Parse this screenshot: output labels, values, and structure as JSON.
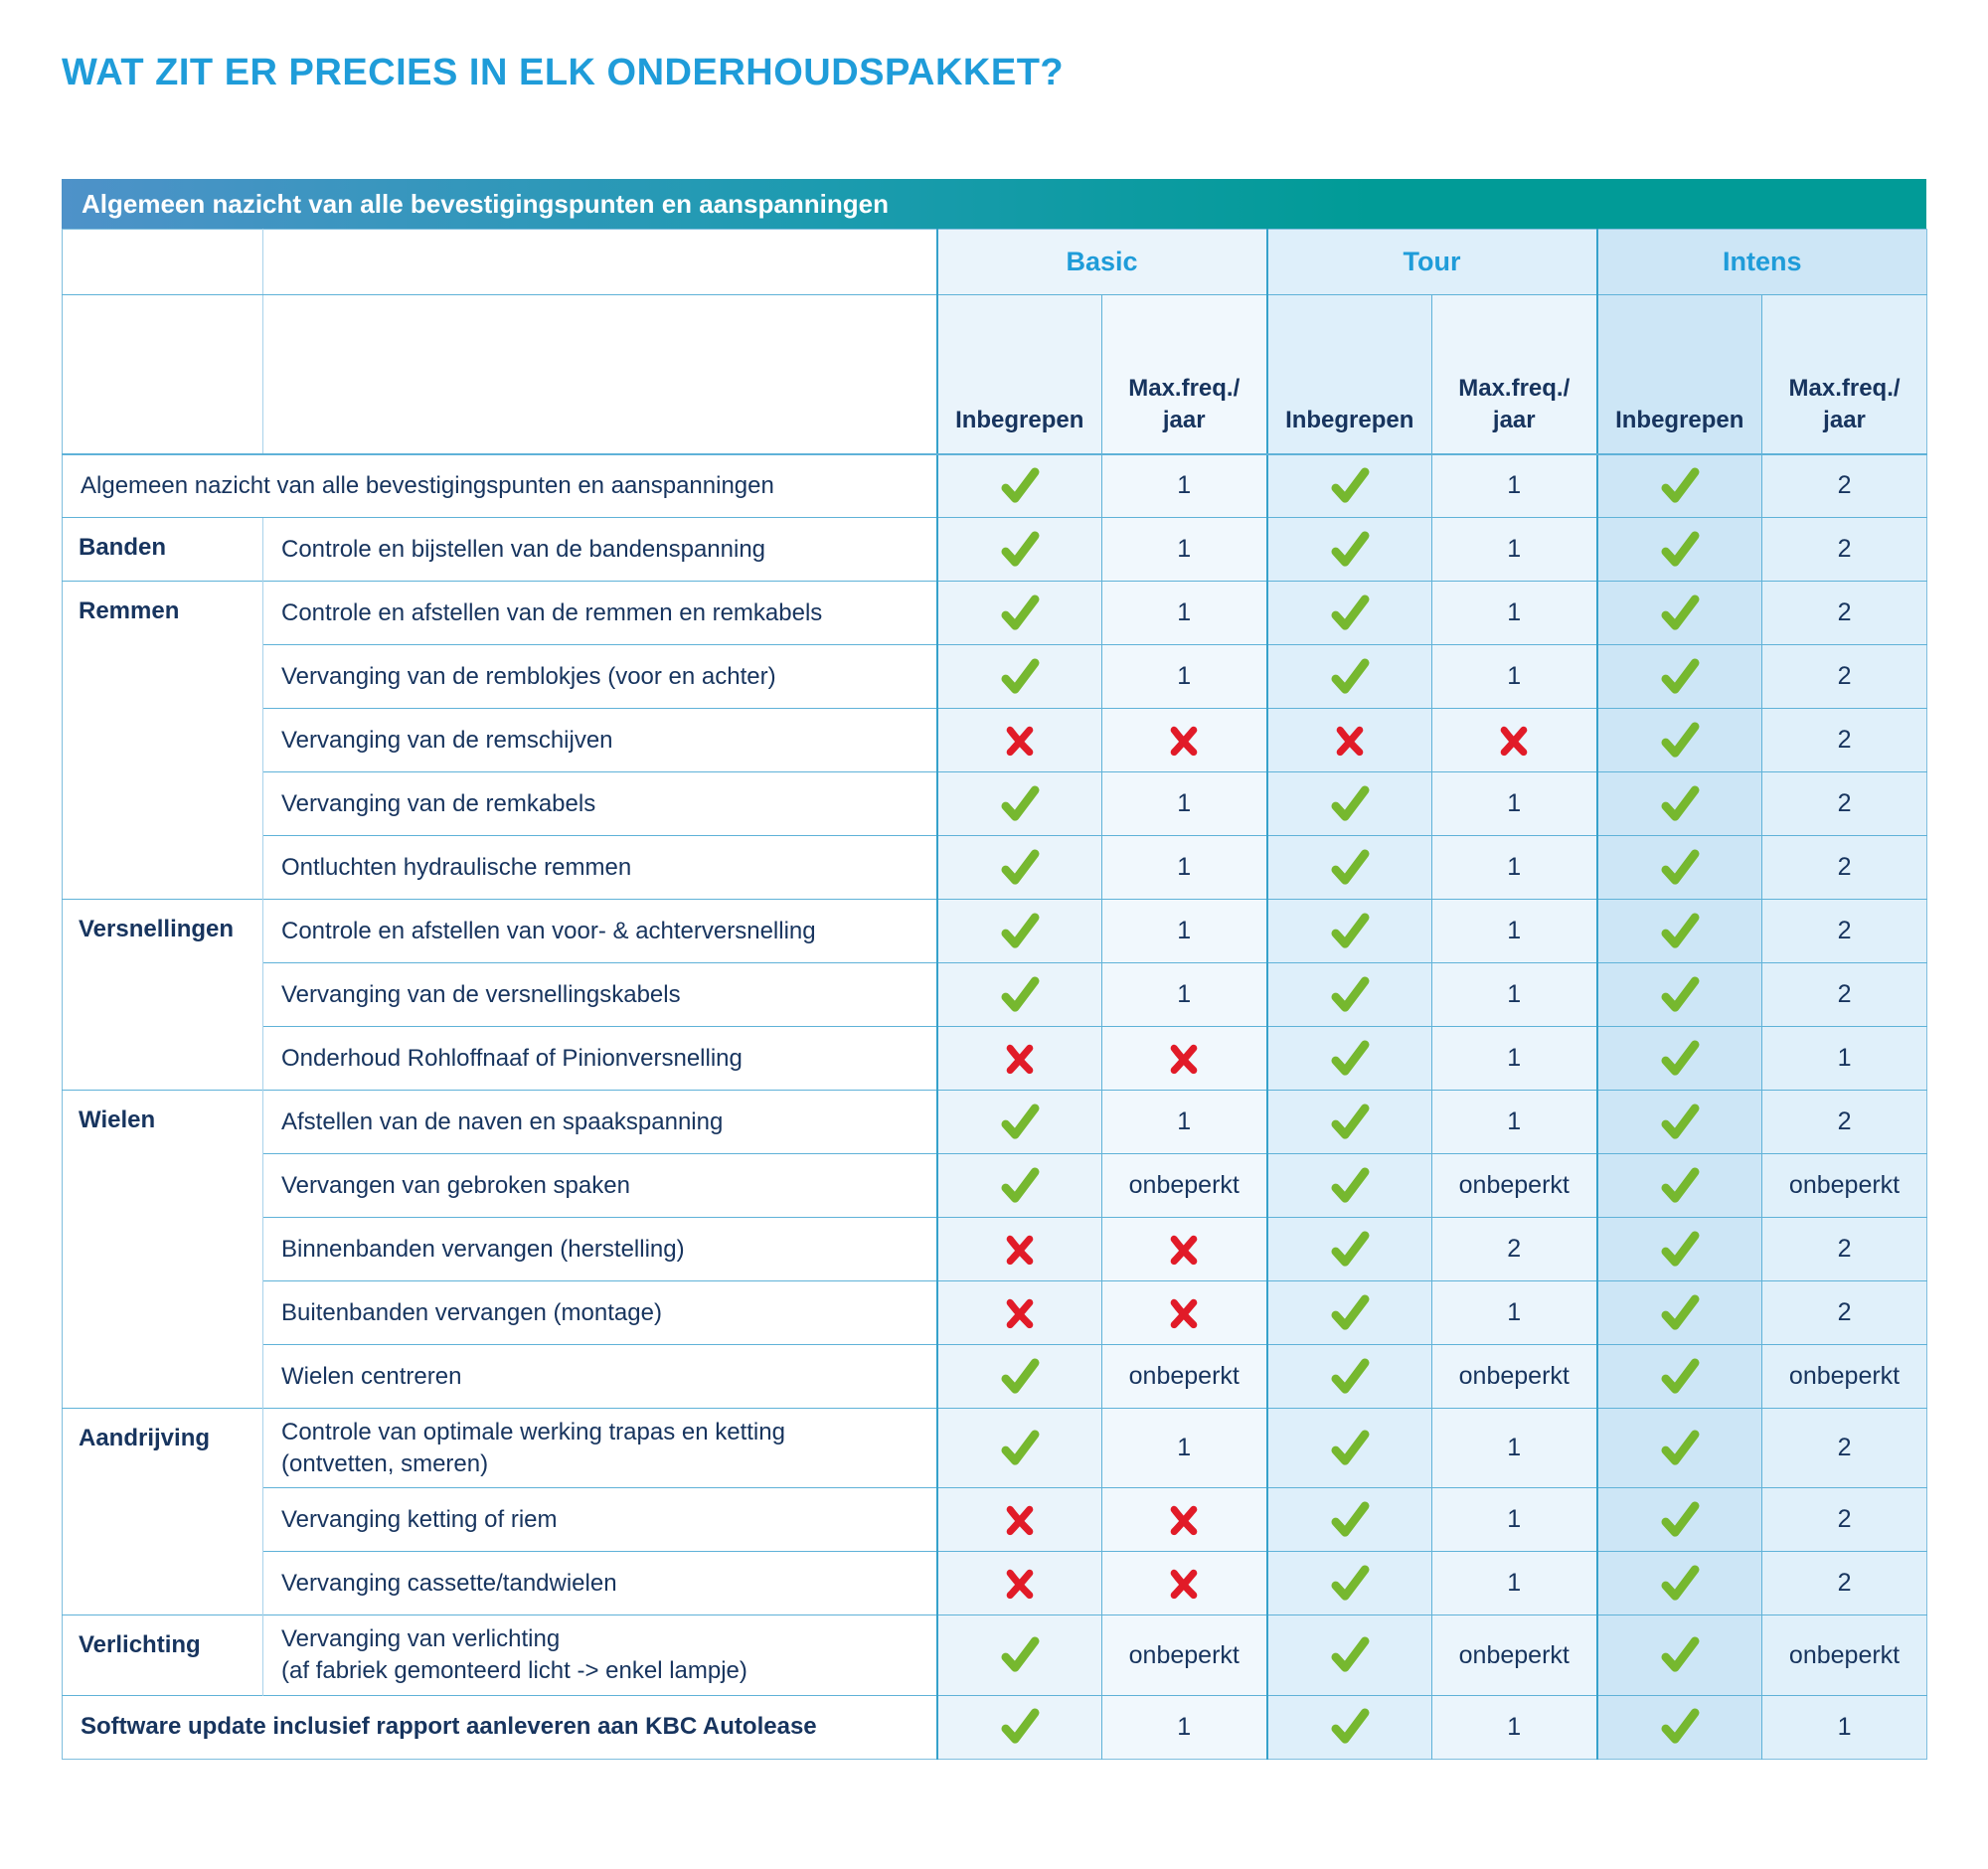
{
  "page": {
    "title": "WAT ZIT ER PRECIES IN ELK ONDERHOUDSPAKKET?"
  },
  "colors": {
    "title_blue": "#1F9CD9",
    "banner_gradient_left": "#4E92C9",
    "banner_gradient_right": "#019B97",
    "navy_text": "#17345E",
    "check_green": "#76B82F",
    "cross_red": "#E11B28",
    "grid_line": "#5FB2D8"
  },
  "table": {
    "banner": "Algemeen nazicht van alle bevestigingspunten en aanspanningen",
    "packages": [
      "Basic",
      "Tour",
      "Intens"
    ],
    "subheader": {
      "included": "Inbegrepen",
      "max_freq": "Max.freq./\njaar"
    },
    "rows": [
      {
        "full": true,
        "label": "Algemeen nazicht van alle bevestigingspunten en aanspanningen",
        "values": [
          "check",
          "1",
          "check",
          "1",
          "check",
          "2"
        ]
      },
      {
        "category": "Banden",
        "rowspan": 1,
        "label": "Controle en bijstellen van de bandenspanning",
        "values": [
          "check",
          "1",
          "check",
          "1",
          "check",
          "2"
        ]
      },
      {
        "category": "Remmen",
        "rowspan": 5,
        "label": "Controle en afstellen van de remmen en remkabels",
        "values": [
          "check",
          "1",
          "check",
          "1",
          "check",
          "2"
        ]
      },
      {
        "label": "Vervanging van de remblokjes (voor en achter)",
        "values": [
          "check",
          "1",
          "check",
          "1",
          "check",
          "2"
        ]
      },
      {
        "label": "Vervanging van de remschijven",
        "values": [
          "cross",
          "cross",
          "cross",
          "cross",
          "check",
          "2"
        ]
      },
      {
        "label": "Vervanging van de remkabels",
        "values": [
          "check",
          "1",
          "check",
          "1",
          "check",
          "2"
        ]
      },
      {
        "label": "Ontluchten hydraulische remmen",
        "values": [
          "check",
          "1",
          "check",
          "1",
          "check",
          "2"
        ]
      },
      {
        "category": "Versnellingen",
        "rowspan": 3,
        "label": "Controle en afstellen van voor- & achterversnelling",
        "values": [
          "check",
          "1",
          "check",
          "1",
          "check",
          "2"
        ]
      },
      {
        "label": "Vervanging van de versnellingskabels",
        "values": [
          "check",
          "1",
          "check",
          "1",
          "check",
          "2"
        ]
      },
      {
        "label": "Onderhoud Rohloffnaaf of Pinionversnelling",
        "values": [
          "cross",
          "cross",
          "check",
          "1",
          "check",
          "1"
        ]
      },
      {
        "category": "Wielen",
        "rowspan": 5,
        "label": "Afstellen van de naven en spaakspanning",
        "values": [
          "check",
          "1",
          "check",
          "1",
          "check",
          "2"
        ]
      },
      {
        "label": "Vervangen van gebroken spaken",
        "values": [
          "check",
          "onbeperkt",
          "check",
          "onbeperkt",
          "check",
          "onbeperkt"
        ]
      },
      {
        "label": "Binnenbanden vervangen (herstelling)",
        "values": [
          "cross",
          "cross",
          "check",
          "2",
          "check",
          "2"
        ]
      },
      {
        "label": "Buitenbanden vervangen (montage)",
        "values": [
          "cross",
          "cross",
          "check",
          "1",
          "check",
          "2"
        ]
      },
      {
        "label": "Wielen centreren",
        "values": [
          "check",
          "onbeperkt",
          "check",
          "onbeperkt",
          "check",
          "onbeperkt"
        ]
      },
      {
        "category": "Aandrijving",
        "rowspan": 3,
        "label": "Controle van optimale werking trapas en ketting",
        "note": "(ontvetten, smeren)",
        "values": [
          "check",
          "1",
          "check",
          "1",
          "check",
          "2"
        ]
      },
      {
        "label": "Vervanging ketting of riem",
        "values": [
          "cross",
          "cross",
          "check",
          "1",
          "check",
          "2"
        ]
      },
      {
        "label": "Vervanging cassette/tandwielen",
        "values": [
          "cross",
          "cross",
          "check",
          "1",
          "check",
          "2"
        ]
      },
      {
        "category": "Verlichting",
        "rowspan": 1,
        "label": "Vervanging van verlichting",
        "note": "(af fabriek gemonteerd licht -> enkel lampje)",
        "values": [
          "check",
          "onbeperkt",
          "check",
          "onbeperkt",
          "check",
          "onbeperkt"
        ]
      },
      {
        "full": true,
        "bold": true,
        "label": "Software update inclusief rapport aanleveren aan KBC Autolease",
        "values": [
          "check",
          "1",
          "check",
          "1",
          "check",
          "1"
        ]
      }
    ]
  }
}
